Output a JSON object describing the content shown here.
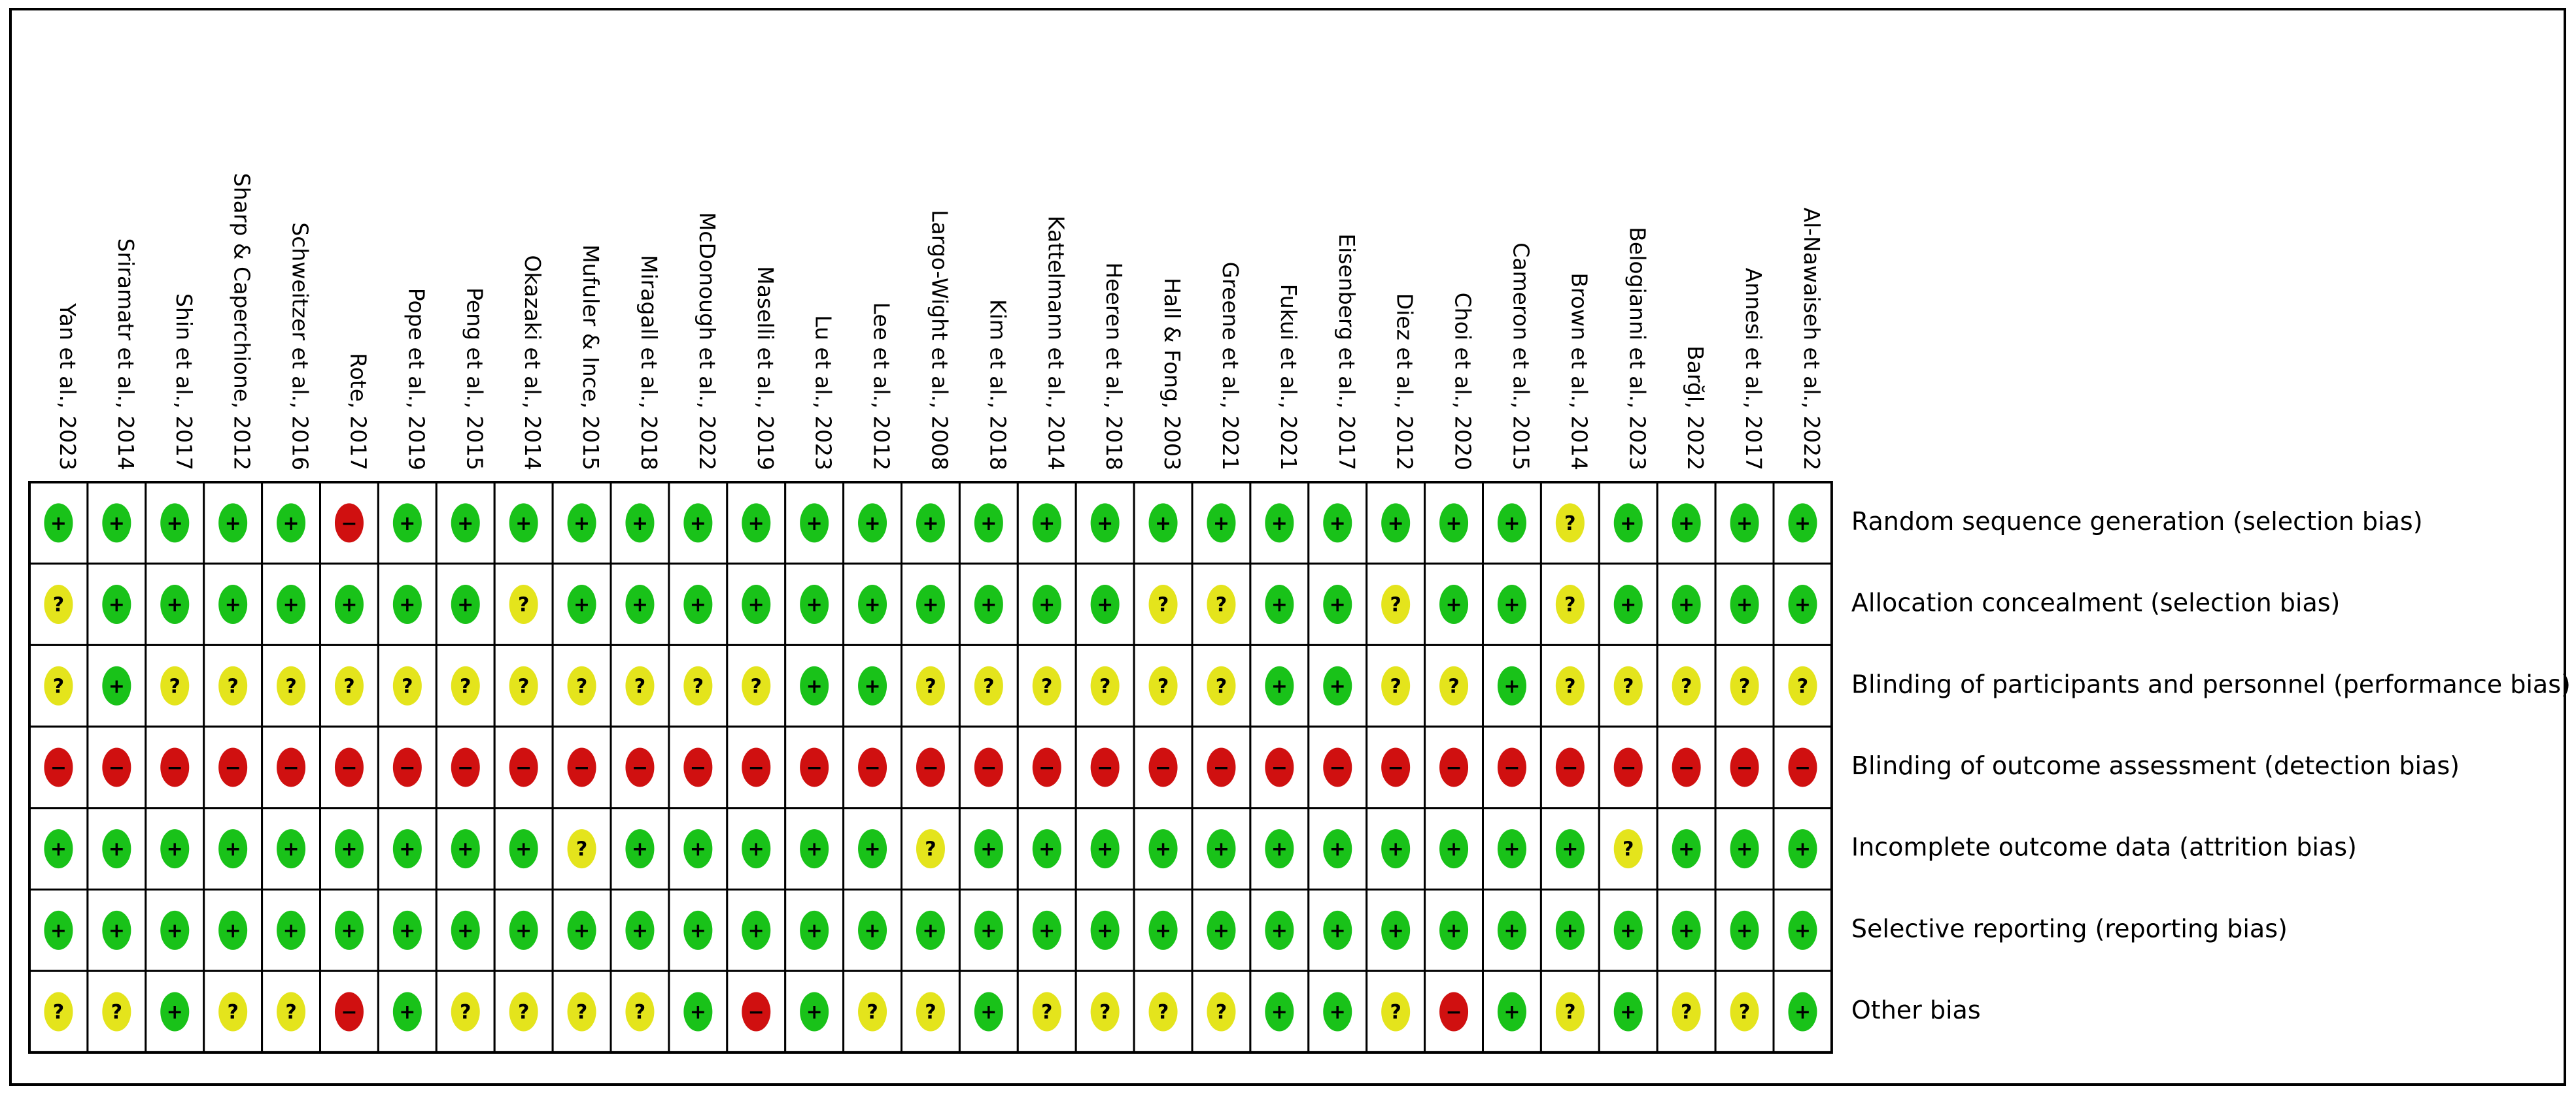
{
  "chart_data": {
    "type": "table",
    "studies": [
      "Yan et al., 2023",
      "Sriramatr et al., 2014",
      "Shin et al., 2017",
      "Sharp & Caperchione, 2012",
      "Schweitzer et al., 2016",
      "Rote, 2017",
      "Pope et al., 2019",
      "Peng et al., 2015",
      "Okazaki et al., 2014",
      "Mufuler  & Ince, 2015",
      "Miragall et al., 2018",
      "McDonough et al., 2022",
      "Maselli et al., 2019",
      "Lu et al., 2023",
      "Lee et al., 2012",
      "Largo-Wight et al., 2008",
      "Kim et al., 2018",
      "Kattelmann et al., 2014",
      "Heeren et al., 2018",
      "Hall & Fong, 2003",
      "Greene et al., 2021",
      "Fukui et al., 2021",
      "Eisenberg et al., 2017",
      "Diez et al., 2012",
      "Choi et al., 2020",
      "Cameron et al., 2015",
      "Brown et al., 2014",
      "Belogianni et al., 2023",
      "Barğl, 2022",
      "Annesi et al., 2017",
      "Al-Nawaiseh et al., 2022"
    ],
    "domains": [
      "Random sequence generation (selection bias)",
      "Allocation concealment (selection bias)",
      "Blinding of participants and personnel (performance bias)",
      "Blinding of outcome assessment (detection bias)",
      "Incomplete outcome data (attrition bias)",
      "Selective reporting (reporting bias)",
      "Other bias"
    ],
    "judgements": [
      [
        "L",
        "L",
        "L",
        "L",
        "L",
        "H",
        "L",
        "L",
        "L",
        "L",
        "L",
        "L",
        "L",
        "L",
        "L",
        "L",
        "L",
        "L",
        "L",
        "L",
        "L",
        "L",
        "L",
        "L",
        "L",
        "L",
        "U",
        "L",
        "L",
        "L",
        "L"
      ],
      [
        "U",
        "L",
        "L",
        "L",
        "L",
        "L",
        "L",
        "L",
        "U",
        "L",
        "L",
        "L",
        "L",
        "L",
        "L",
        "L",
        "L",
        "L",
        "L",
        "U",
        "U",
        "L",
        "L",
        "U",
        "L",
        "L",
        "U",
        "L",
        "L",
        "L",
        "L"
      ],
      [
        "U",
        "L",
        "U",
        "U",
        "U",
        "U",
        "U",
        "U",
        "U",
        "U",
        "U",
        "U",
        "U",
        "L",
        "L",
        "U",
        "U",
        "U",
        "U",
        "U",
        "U",
        "L",
        "L",
        "U",
        "U",
        "L",
        "U",
        "U",
        "U",
        "U",
        "U"
      ],
      [
        "H",
        "H",
        "H",
        "H",
        "H",
        "H",
        "H",
        "H",
        "H",
        "H",
        "H",
        "H",
        "H",
        "H",
        "H",
        "H",
        "H",
        "H",
        "H",
        "H",
        "H",
        "H",
        "H",
        "H",
        "H",
        "H",
        "H",
        "H",
        "H",
        "H",
        "H"
      ],
      [
        "L",
        "L",
        "L",
        "L",
        "L",
        "L",
        "L",
        "L",
        "L",
        "U",
        "L",
        "L",
        "L",
        "L",
        "L",
        "U",
        "L",
        "L",
        "L",
        "L",
        "L",
        "L",
        "L",
        "L",
        "L",
        "L",
        "L",
        "U",
        "L",
        "L",
        "L"
      ],
      [
        "L",
        "L",
        "L",
        "L",
        "L",
        "L",
        "L",
        "L",
        "L",
        "L",
        "L",
        "L",
        "L",
        "L",
        "L",
        "L",
        "L",
        "L",
        "L",
        "L",
        "L",
        "L",
        "L",
        "L",
        "L",
        "L",
        "L",
        "L",
        "L",
        "L",
        "L"
      ],
      [
        "U",
        "U",
        "L",
        "U",
        "U",
        "H",
        "L",
        "U",
        "U",
        "U",
        "U",
        "L",
        "H",
        "L",
        "U",
        "U",
        "L",
        "U",
        "U",
        "U",
        "U",
        "L",
        "L",
        "U",
        "H",
        "L",
        "U",
        "L",
        "U",
        "U",
        "L"
      ]
    ],
    "legend": {
      "L": {
        "symbol": "+",
        "color": "#19c219"
      },
      "U": {
        "symbol": "?",
        "color": "#e4e41c"
      },
      "H": {
        "symbol": "−",
        "color": "#d01010"
      }
    }
  }
}
